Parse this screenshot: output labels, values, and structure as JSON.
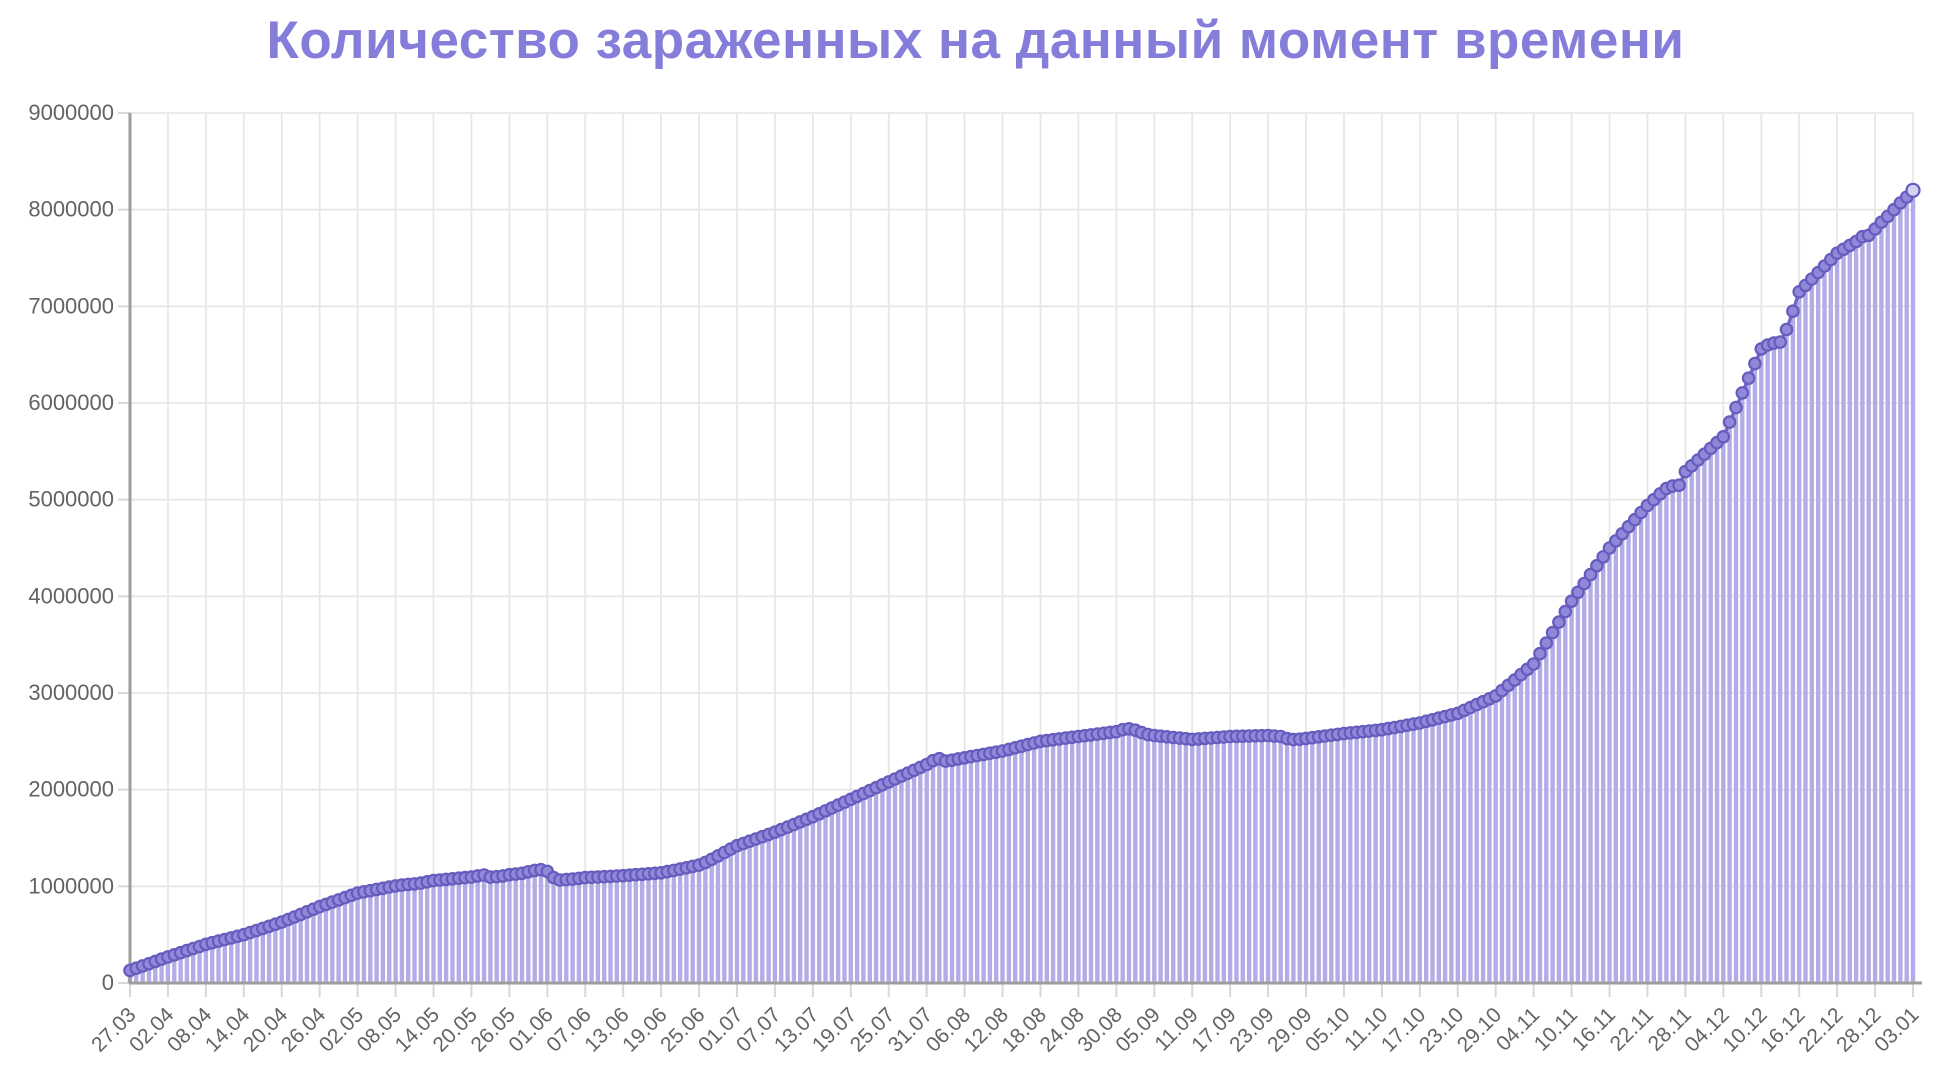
{
  "chart_data": {
    "type": "line",
    "title": "Количество зараженных на данный момент времени",
    "xlabel": "",
    "ylabel": "",
    "ylim": [
      0,
      9000000
    ],
    "y_tick_step": 1000000,
    "y_tick_labels": [
      "0",
      "1000000",
      "2000000",
      "3000000",
      "4000000",
      "5000000",
      "6000000",
      "7000000",
      "8000000",
      "9000000"
    ],
    "x_points_per_tick": 6,
    "x_label_rotation_deg": -45,
    "grid": true,
    "legend": "none",
    "x_tick_labels": [
      "27.03",
      "02.04",
      "08.04",
      "14.04",
      "20.04",
      "26.04",
      "02.05",
      "08.05",
      "14.05",
      "20.05",
      "26.05",
      "01.06",
      "07.06",
      "13.06",
      "19.06",
      "25.06",
      "01.07",
      "07.07",
      "13.07",
      "19.07",
      "25.07",
      "31.07",
      "06.08",
      "12.08",
      "18.08",
      "24.08",
      "30.08",
      "05.09",
      "11.09",
      "17.09",
      "23.09",
      "29.09",
      "05.10",
      "11.10",
      "17.10",
      "23.10",
      "29.10",
      "04.11",
      "10.11",
      "16.11",
      "22.11",
      "28.11",
      "04.12",
      "10.12",
      "16.12",
      "22.12",
      "28.12",
      "03.01"
    ],
    "values": [
      130000,
      153000,
      177000,
      200000,
      223000,
      247000,
      270000,
      292000,
      313000,
      335000,
      357000,
      378000,
      400000,
      417000,
      433000,
      450000,
      467000,
      483000,
      500000,
      522000,
      543000,
      565000,
      587000,
      608000,
      630000,
      657000,
      683000,
      710000,
      737000,
      763000,
      790000,
      813000,
      837000,
      860000,
      883000,
      907000,
      930000,
      943000,
      955000,
      968000,
      980000,
      993000,
      1005000,
      1013000,
      1020000,
      1025000,
      1033000,
      1047000,
      1060000,
      1066000,
      1072000,
      1078000,
      1084000,
      1090000,
      1095000,
      1108000,
      1117000,
      1095000,
      1100000,
      1108000,
      1120000,
      1127000,
      1135000,
      1150000,
      1165000,
      1172000,
      1155000,
      1090000,
      1065000,
      1070000,
      1075000,
      1082000,
      1090000,
      1093000,
      1097000,
      1100000,
      1103000,
      1107000,
      1110000,
      1115000,
      1120000,
      1125000,
      1130000,
      1135000,
      1140000,
      1152000,
      1165000,
      1178000,
      1192000,
      1206000,
      1220000,
      1248000,
      1280000,
      1315000,
      1350000,
      1385000,
      1420000,
      1443000,
      1467000,
      1490000,
      1513000,
      1537000,
      1560000,
      1587000,
      1613000,
      1640000,
      1667000,
      1693000,
      1720000,
      1750000,
      1780000,
      1810000,
      1840000,
      1870000,
      1900000,
      1930000,
      1960000,
      1990000,
      2020000,
      2050000,
      2080000,
      2110000,
      2140000,
      2170000,
      2200000,
      2230000,
      2260000,
      2300000,
      2320000,
      2295000,
      2305000,
      2318000,
      2330000,
      2342000,
      2353000,
      2365000,
      2377000,
      2388000,
      2400000,
      2417000,
      2433000,
      2450000,
      2467000,
      2483000,
      2500000,
      2508000,
      2517000,
      2525000,
      2533000,
      2542000,
      2550000,
      2558000,
      2567000,
      2575000,
      2583000,
      2592000,
      2600000,
      2620000,
      2630000,
      2615000,
      2590000,
      2570000,
      2560000,
      2553000,
      2547000,
      2540000,
      2533000,
      2527000,
      2520000,
      2525000,
      2530000,
      2535000,
      2540000,
      2545000,
      2550000,
      2552000,
      2553000,
      2555000,
      2557000,
      2558000,
      2560000,
      2555000,
      2550000,
      2528000,
      2518000,
      2522000,
      2530000,
      2538000,
      2547000,
      2555000,
      2563000,
      2572000,
      2580000,
      2587000,
      2593000,
      2600000,
      2607000,
      2613000,
      2620000,
      2632000,
      2643000,
      2655000,
      2667000,
      2678000,
      2690000,
      2707000,
      2723000,
      2740000,
      2757000,
      2773000,
      2790000,
      2820000,
      2850000,
      2880000,
      2910000,
      2940000,
      2970000,
      3025000,
      3080000,
      3135000,
      3190000,
      3245000,
      3300000,
      3408000,
      3517000,
      3625000,
      3733000,
      3842000,
      3950000,
      4042000,
      4133000,
      4225000,
      4317000,
      4408000,
      4500000,
      4573000,
      4647000,
      4720000,
      4793000,
      4867000,
      4940000,
      5000000,
      5060000,
      5115000,
      5140000,
      5150000,
      5290000,
      5350000,
      5410000,
      5470000,
      5530000,
      5590000,
      5650000,
      5802000,
      5953000,
      6105000,
      6257000,
      6408000,
      6560000,
      6600000,
      6620000,
      6630000,
      6760000,
      6950000,
      7150000,
      7217000,
      7283000,
      7350000,
      7417000,
      7483000,
      7550000,
      7590000,
      7630000,
      7670000,
      7720000,
      7735000,
      7800000,
      7870000,
      7930000,
      8000000,
      8070000,
      8130000,
      8200000
    ]
  },
  "colors": {
    "title": "#847dd9",
    "axis_text": "#636363",
    "grid": "#e7e7e7",
    "tick": "#d8d8d8",
    "axis_line": "#9e9e9e",
    "bar": "#b3ace6",
    "line": "#7165c8",
    "point_fill": "#9088d8",
    "point_border": "#665cbe",
    "last_point_fill": "#d5d1f0"
  }
}
